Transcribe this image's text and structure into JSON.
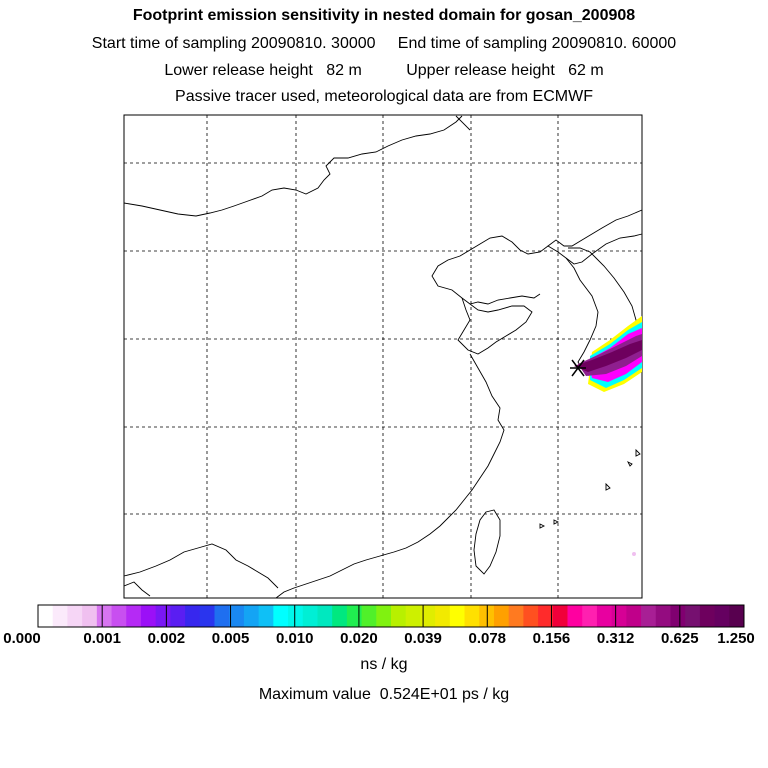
{
  "header": {
    "title": "Footprint emission sensitivity in nested domain for gosan_200908",
    "sampling_line": "Start time of sampling 20090810. 30000     End time of sampling 20090810. 60000",
    "release_line": "Lower release height   82 m          Upper release height   62 m",
    "tracer_line": "Passive tracer used, meteorological data are from ECMWF"
  },
  "colorbar": {
    "labels": [
      "0.000",
      "0.001",
      "0.002",
      "0.005",
      "0.010",
      "0.020",
      "0.039",
      "0.078",
      "0.156",
      "0.312",
      "0.625",
      "1.250"
    ],
    "colors": [
      "#ffffff",
      "#fbeafb",
      "#f6d6f6",
      "#f0c0f0",
      "#d775f0",
      "#c84ff0",
      "#b52af5",
      "#9b10f7",
      "#7a17f5",
      "#5a1ef2",
      "#3727ee",
      "#2a35ee",
      "#1f6ff0",
      "#1a88f2",
      "#14a4f4",
      "#0fc0f6",
      "#00ffff",
      "#00f7ea",
      "#00efd5",
      "#00e8bf",
      "#00e880",
      "#20ee50",
      "#50f02a",
      "#80f210",
      "#b8f000",
      "#cdf000",
      "#e0ed00",
      "#f2ea00",
      "#ffff00",
      "#ffe000",
      "#ffc000",
      "#ffa000",
      "#ff7a20",
      "#ff5020",
      "#ff2b2b",
      "#f0003a",
      "#ff00a0",
      "#ff20b0",
      "#e800a0",
      "#d60095",
      "#c0008a",
      "#a81f95",
      "#940c80",
      "#800070",
      "#761070",
      "#6e005e",
      "#650060",
      "#58004f"
    ],
    "units": "ns / kg"
  },
  "footer": {
    "max_value": "Maximum value  0.524E+01 ps / kg"
  },
  "map": {
    "release_site": "gosan",
    "plume_colors": [
      "#ffff00",
      "#00ffff",
      "#ff00ff",
      "#8f1f8f",
      "#6e005e"
    ]
  }
}
